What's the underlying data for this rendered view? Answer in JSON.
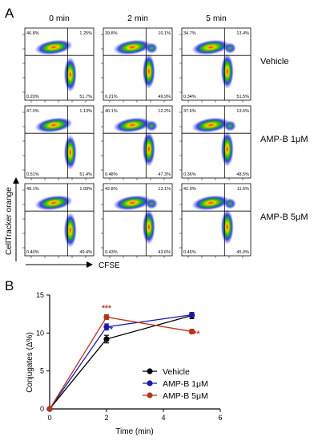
{
  "panels": {
    "a_label": "A",
    "b_label": "B"
  },
  "flow": {
    "columns": [
      "0 min",
      "2 min",
      "5 min"
    ],
    "rows": [
      "Vehicle",
      "AMP-B 1μM",
      "AMP-B 5μM"
    ],
    "y_axis_label": "CellTracker orange",
    "x_axis_label": "CFSE",
    "quadrants": [
      [
        {
          "ul": "46.8%",
          "ur": "1.25%",
          "ll": "0.20%",
          "lr": "51.7%"
        },
        {
          "ul": "39.8%",
          "ur": "10.1%",
          "ll": "0.21%",
          "lr": "49.9%"
        },
        {
          "ul": "34.7%",
          "ur": "13.4%",
          "ll": "0.34%",
          "lr": "51.5%"
        }
      ],
      [
        {
          "ul": "47.0%",
          "ur": "1.13%",
          "ll": "0.51%",
          "lr": "51.4%"
        },
        {
          "ul": "40.1%",
          "ur": "12.2%",
          "ll": "0.48%",
          "lr": "47.3%"
        },
        {
          "ul": "37.6%",
          "ur": "13.6%",
          "ll": "0.36%",
          "lr": "48.5%"
        }
      ],
      [
        {
          "ul": "49.1%",
          "ur": "1.09%",
          "ll": "0.40%",
          "lr": "49.4%"
        },
        {
          "ul": "42.8%",
          "ur": "13.1%",
          "ll": "0.43%",
          "lr": "43.6%"
        },
        {
          "ul": "42.9%",
          "ur": "11.6%",
          "ll": "0.45%",
          "lr": "45.0%"
        }
      ]
    ]
  },
  "chart_data": {
    "type": "line",
    "xlabel": "Time (min)",
    "ylabel": "Conjugates (Δ%)",
    "xlim": [
      0,
      6
    ],
    "ylim": [
      0,
      15
    ],
    "xticks": [
      "0",
      "2",
      "4",
      "6"
    ],
    "yticks": [
      "0",
      "5",
      "10",
      "15"
    ],
    "x": [
      0,
      2,
      5
    ],
    "legend_position": "bottom-right",
    "series": [
      {
        "name": "Vehicle",
        "color": "#000000",
        "values": [
          0,
          9.2,
          12.3
        ],
        "errors": [
          0,
          0.5,
          0.4
        ],
        "annotations": [
          "",
          "",
          ""
        ]
      },
      {
        "name": "AMP-B 1μM",
        "color": "#1a1aa8",
        "values": [
          0,
          10.8,
          12.4
        ],
        "errors": [
          0,
          0.4,
          0.3
        ],
        "annotations": [
          "",
          "**",
          ""
        ]
      },
      {
        "name": "AMP-B 5μM",
        "color": "#b5341b",
        "values": [
          0,
          12.1,
          10.2
        ],
        "errors": [
          0,
          0.3,
          0.3
        ],
        "annotations": [
          "",
          "***",
          "***"
        ]
      }
    ]
  }
}
